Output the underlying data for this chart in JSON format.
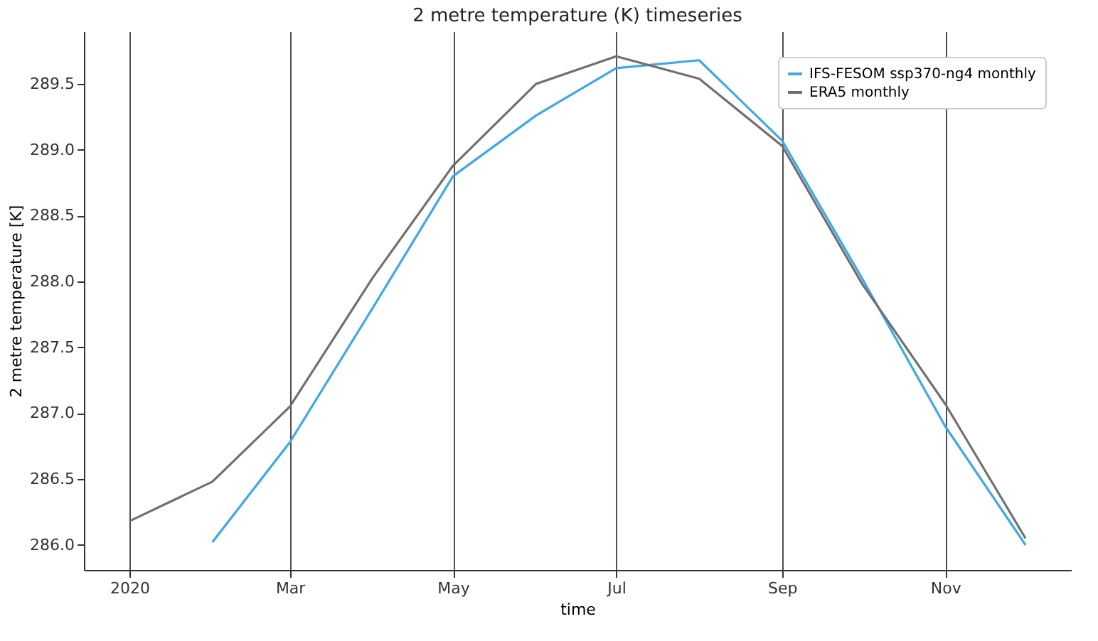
{
  "chart_data": {
    "type": "line",
    "title": "2 metre temperature (K) timeseries",
    "xlabel": "time",
    "ylabel": "2 metre temperature [K]",
    "xlim": [
      "2019-12-15",
      "2020-12-18"
    ],
    "ylim": [
      285.81,
      289.9
    ],
    "xticks": [
      {
        "value": "2020-01-01",
        "label": "2020"
      },
      {
        "value": "2020-03-01",
        "label": "Mar"
      },
      {
        "value": "2020-05-01",
        "label": "May"
      },
      {
        "value": "2020-07-01",
        "label": "Jul"
      },
      {
        "value": "2020-09-01",
        "label": "Sep"
      },
      {
        "value": "2020-11-01",
        "label": "Nov"
      }
    ],
    "yticks": [
      {
        "value": 286,
        "label": "286.0"
      },
      286.5,
      {
        "value": 287,
        "label": "287.0"
      },
      287.5,
      {
        "value": 288,
        "label": "288.0"
      },
      288.5,
      {
        "value": 289,
        "label": "289.0"
      },
      289.5
    ],
    "grid": "x",
    "legend": "top right",
    "series": [
      {
        "name": "IFS-FESOM ssp370-ng4 monthly",
        "color": "#3ea8e8",
        "x": [
          "2020-02-01",
          "2020-03-01",
          "2020-04-01",
          "2020-05-01",
          "2020-06-01",
          "2020-07-01",
          "2020-08-01",
          "2020-09-01",
          "2020-10-01",
          "2020-11-01",
          "2020-12-01"
        ],
        "values": [
          286.02,
          286.78,
          287.8,
          288.8,
          289.26,
          289.62,
          289.68,
          289.07,
          288.02,
          286.9,
          286.0
        ]
      },
      {
        "name": "ERA5 monthly",
        "color": "#707070",
        "x": [
          "2020-01-01",
          "2020-02-01",
          "2020-03-01",
          "2020-04-01",
          "2020-05-01",
          "2020-06-01",
          "2020-07-01",
          "2020-08-01",
          "2020-09-01",
          "2020-10-01",
          "2020-11-01",
          "2020-12-01"
        ],
        "values": [
          286.18,
          286.48,
          287.05,
          288.03,
          288.88,
          289.5,
          289.71,
          289.54,
          289.03,
          287.98,
          287.07,
          286.05
        ]
      }
    ]
  }
}
